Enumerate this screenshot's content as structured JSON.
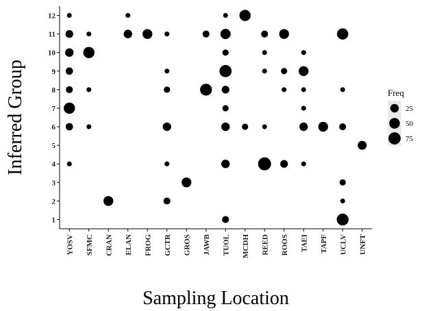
{
  "chart_data": {
    "type": "scatter",
    "xlabel": "Sampling Location",
    "ylabel": "Inferred Group",
    "categories": [
      "YOSV",
      "SFMC",
      "CRAN",
      "ELAN",
      "FROG",
      "GCTR",
      "GROS",
      "JAWB",
      "TUOL",
      "MCDH",
      "REED",
      "ROOS",
      "TAEI",
      "TAPF",
      "UCLV",
      "UNFT"
    ],
    "y_ticks": [
      1,
      2,
      3,
      4,
      5,
      6,
      7,
      8,
      9,
      10,
      11,
      12
    ],
    "ylim": [
      0.5,
      12.5
    ],
    "size_legend": {
      "title": "Freq",
      "values": [
        25,
        50,
        75
      ],
      "labels": [
        "25",
        "50",
        "75"
      ]
    },
    "points": [
      {
        "x": "YOSV",
        "y": 12,
        "freq": 2
      },
      {
        "x": "YOSV",
        "y": 11,
        "freq": 18
      },
      {
        "x": "YOSV",
        "y": 10,
        "freq": 25
      },
      {
        "x": "YOSV",
        "y": 9,
        "freq": 15
      },
      {
        "x": "YOSV",
        "y": 8,
        "freq": 12
      },
      {
        "x": "YOSV",
        "y": 7,
        "freq": 60
      },
      {
        "x": "YOSV",
        "y": 6,
        "freq": 15
      },
      {
        "x": "YOSV",
        "y": 4,
        "freq": 2
      },
      {
        "x": "SFMC",
        "y": 11,
        "freq": 2
      },
      {
        "x": "SFMC",
        "y": 10,
        "freq": 60
      },
      {
        "x": "SFMC",
        "y": 8,
        "freq": 2
      },
      {
        "x": "SFMC",
        "y": 6,
        "freq": 2
      },
      {
        "x": "CRAN",
        "y": 2,
        "freq": 40
      },
      {
        "x": "ELAN",
        "y": 12,
        "freq": 2
      },
      {
        "x": "ELAN",
        "y": 11,
        "freq": 25
      },
      {
        "x": "FROG",
        "y": 11,
        "freq": 40
      },
      {
        "x": "GCTR",
        "y": 11,
        "freq": 2
      },
      {
        "x": "GCTR",
        "y": 9,
        "freq": 2
      },
      {
        "x": "GCTR",
        "y": 8,
        "freq": 8
      },
      {
        "x": "GCTR",
        "y": 6,
        "freq": 25
      },
      {
        "x": "GCTR",
        "y": 4,
        "freq": 2
      },
      {
        "x": "GCTR",
        "y": 2,
        "freq": 12
      },
      {
        "x": "GROS",
        "y": 3,
        "freq": 40
      },
      {
        "x": "JAWB",
        "y": 11,
        "freq": 12
      },
      {
        "x": "JAWB",
        "y": 8,
        "freq": 70
      },
      {
        "x": "TUOL",
        "y": 12,
        "freq": 2
      },
      {
        "x": "TUOL",
        "y": 11,
        "freq": 45
      },
      {
        "x": "TUOL",
        "y": 10,
        "freq": 8
      },
      {
        "x": "TUOL",
        "y": 9,
        "freq": 75
      },
      {
        "x": "TUOL",
        "y": 8,
        "freq": 18
      },
      {
        "x": "TUOL",
        "y": 7,
        "freq": 8
      },
      {
        "x": "TUOL",
        "y": 6,
        "freq": 25
      },
      {
        "x": "TUOL",
        "y": 4,
        "freq": 25
      },
      {
        "x": "TUOL",
        "y": 1,
        "freq": 12
      },
      {
        "x": "MCDH",
        "y": 12,
        "freq": 60
      },
      {
        "x": "MCDH",
        "y": 6,
        "freq": 8
      },
      {
        "x": "REED",
        "y": 11,
        "freq": 12
      },
      {
        "x": "REED",
        "y": 10,
        "freq": 2
      },
      {
        "x": "REED",
        "y": 9,
        "freq": 2
      },
      {
        "x": "REED",
        "y": 6,
        "freq": 2
      },
      {
        "x": "REED",
        "y": 4,
        "freq": 90
      },
      {
        "x": "ROOS",
        "y": 11,
        "freq": 40
      },
      {
        "x": "ROOS",
        "y": 9,
        "freq": 8
      },
      {
        "x": "ROOS",
        "y": 8,
        "freq": 2
      },
      {
        "x": "ROOS",
        "y": 4,
        "freq": 18
      },
      {
        "x": "TAEI",
        "y": 10,
        "freq": 2
      },
      {
        "x": "TAEI",
        "y": 9,
        "freq": 40
      },
      {
        "x": "TAEI",
        "y": 8,
        "freq": 2
      },
      {
        "x": "TAEI",
        "y": 7,
        "freq": 2
      },
      {
        "x": "TAEI",
        "y": 6,
        "freq": 25
      },
      {
        "x": "TAEI",
        "y": 4,
        "freq": 2
      },
      {
        "x": "TAPF",
        "y": 6,
        "freq": 40
      },
      {
        "x": "UCLV",
        "y": 11,
        "freq": 60
      },
      {
        "x": "UCLV",
        "y": 8,
        "freq": 2
      },
      {
        "x": "UCLV",
        "y": 6,
        "freq": 12
      },
      {
        "x": "UCLV",
        "y": 3,
        "freq": 8
      },
      {
        "x": "UCLV",
        "y": 2,
        "freq": 2
      },
      {
        "x": "UCLV",
        "y": 1,
        "freq": 70
      },
      {
        "x": "UNFT",
        "y": 5,
        "freq": 30
      }
    ],
    "grid": false,
    "legend_position": "right"
  }
}
